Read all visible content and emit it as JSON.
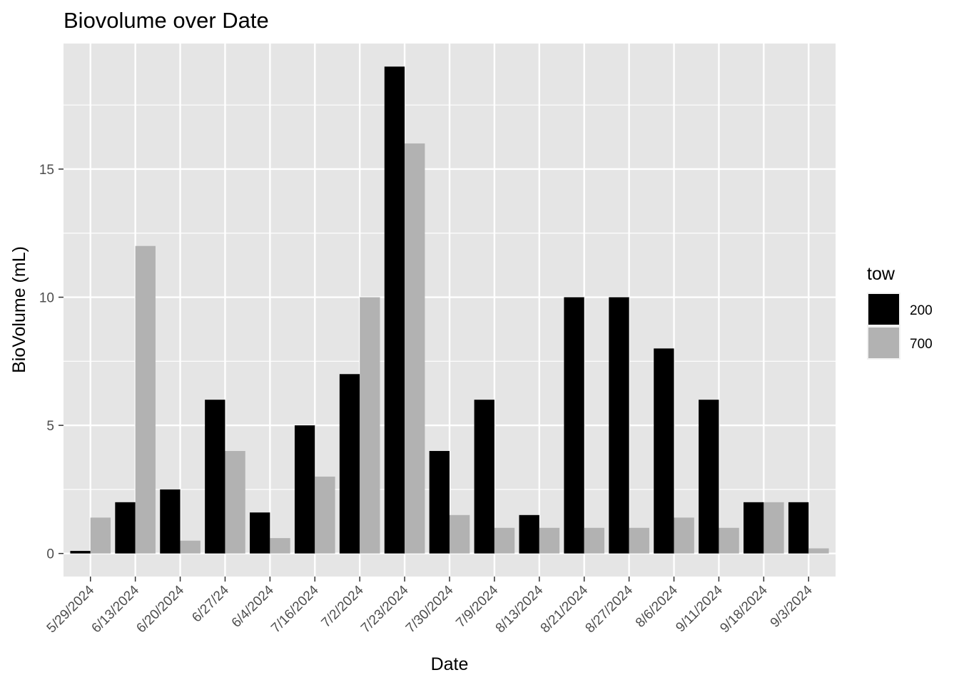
{
  "chart_data": {
    "type": "bar",
    "title": "Biovolume over Date",
    "xlabel": "Date",
    "ylabel": "BioVolume (mL)",
    "categories": [
      "5/29/2024",
      "6/13/2024",
      "6/20/2024",
      "6/27/24",
      "6/4/2024",
      "7/16/2024",
      "7/2/2024",
      "7/23/2024",
      "7/30/2024",
      "7/9/2024",
      "8/13/2024",
      "8/21/2024",
      "8/27/2024",
      "8/6/2024",
      "9/11/2024",
      "9/18/2024",
      "9/3/2024"
    ],
    "y_ticks": [
      "0",
      "5",
      "10",
      "15"
    ],
    "ylim": [
      -0.9,
      19.9
    ],
    "grid": true,
    "legend": {
      "title": "tow",
      "position": "right"
    },
    "series": [
      {
        "name": "200",
        "color": "#000000",
        "values": [
          0.1,
          2,
          2.5,
          6,
          1.6,
          5,
          7,
          19,
          4,
          6,
          1.5,
          10,
          10,
          8,
          6,
          2,
          2
        ]
      },
      {
        "name": "700",
        "color": "#b2b2b2",
        "values": [
          1.4,
          12,
          0.5,
          4,
          0.6,
          3,
          10,
          16,
          1.5,
          1,
          1,
          1,
          1,
          1.4,
          1,
          2,
          0.2
        ]
      }
    ]
  },
  "colors": {
    "panel_background": "#e5e5e5",
    "grid": "#ffffff"
  }
}
